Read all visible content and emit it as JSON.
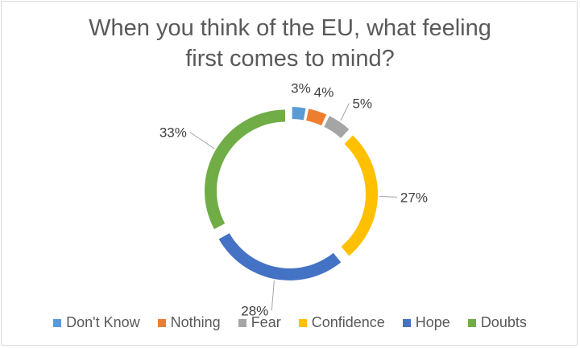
{
  "chart_data": {
    "type": "pie",
    "variant": "donut",
    "title_line1": "When you think of the EU, what feeling",
    "title_line2": "first comes to mind?",
    "categories": [
      "Don't Know",
      "Nothing",
      "Fear",
      "Confidence",
      "Hope",
      "Doubts"
    ],
    "values": [
      3,
      4,
      5,
      27,
      28,
      33
    ],
    "labels": [
      "3%",
      "4%",
      "5%",
      "27%",
      "28%",
      "33%"
    ],
    "colors": [
      "#5b9bd5",
      "#ed7d31",
      "#a5a5a5",
      "#ffc000",
      "#4472c4",
      "#70ad47"
    ],
    "legend_position": "bottom",
    "exploded": true
  }
}
